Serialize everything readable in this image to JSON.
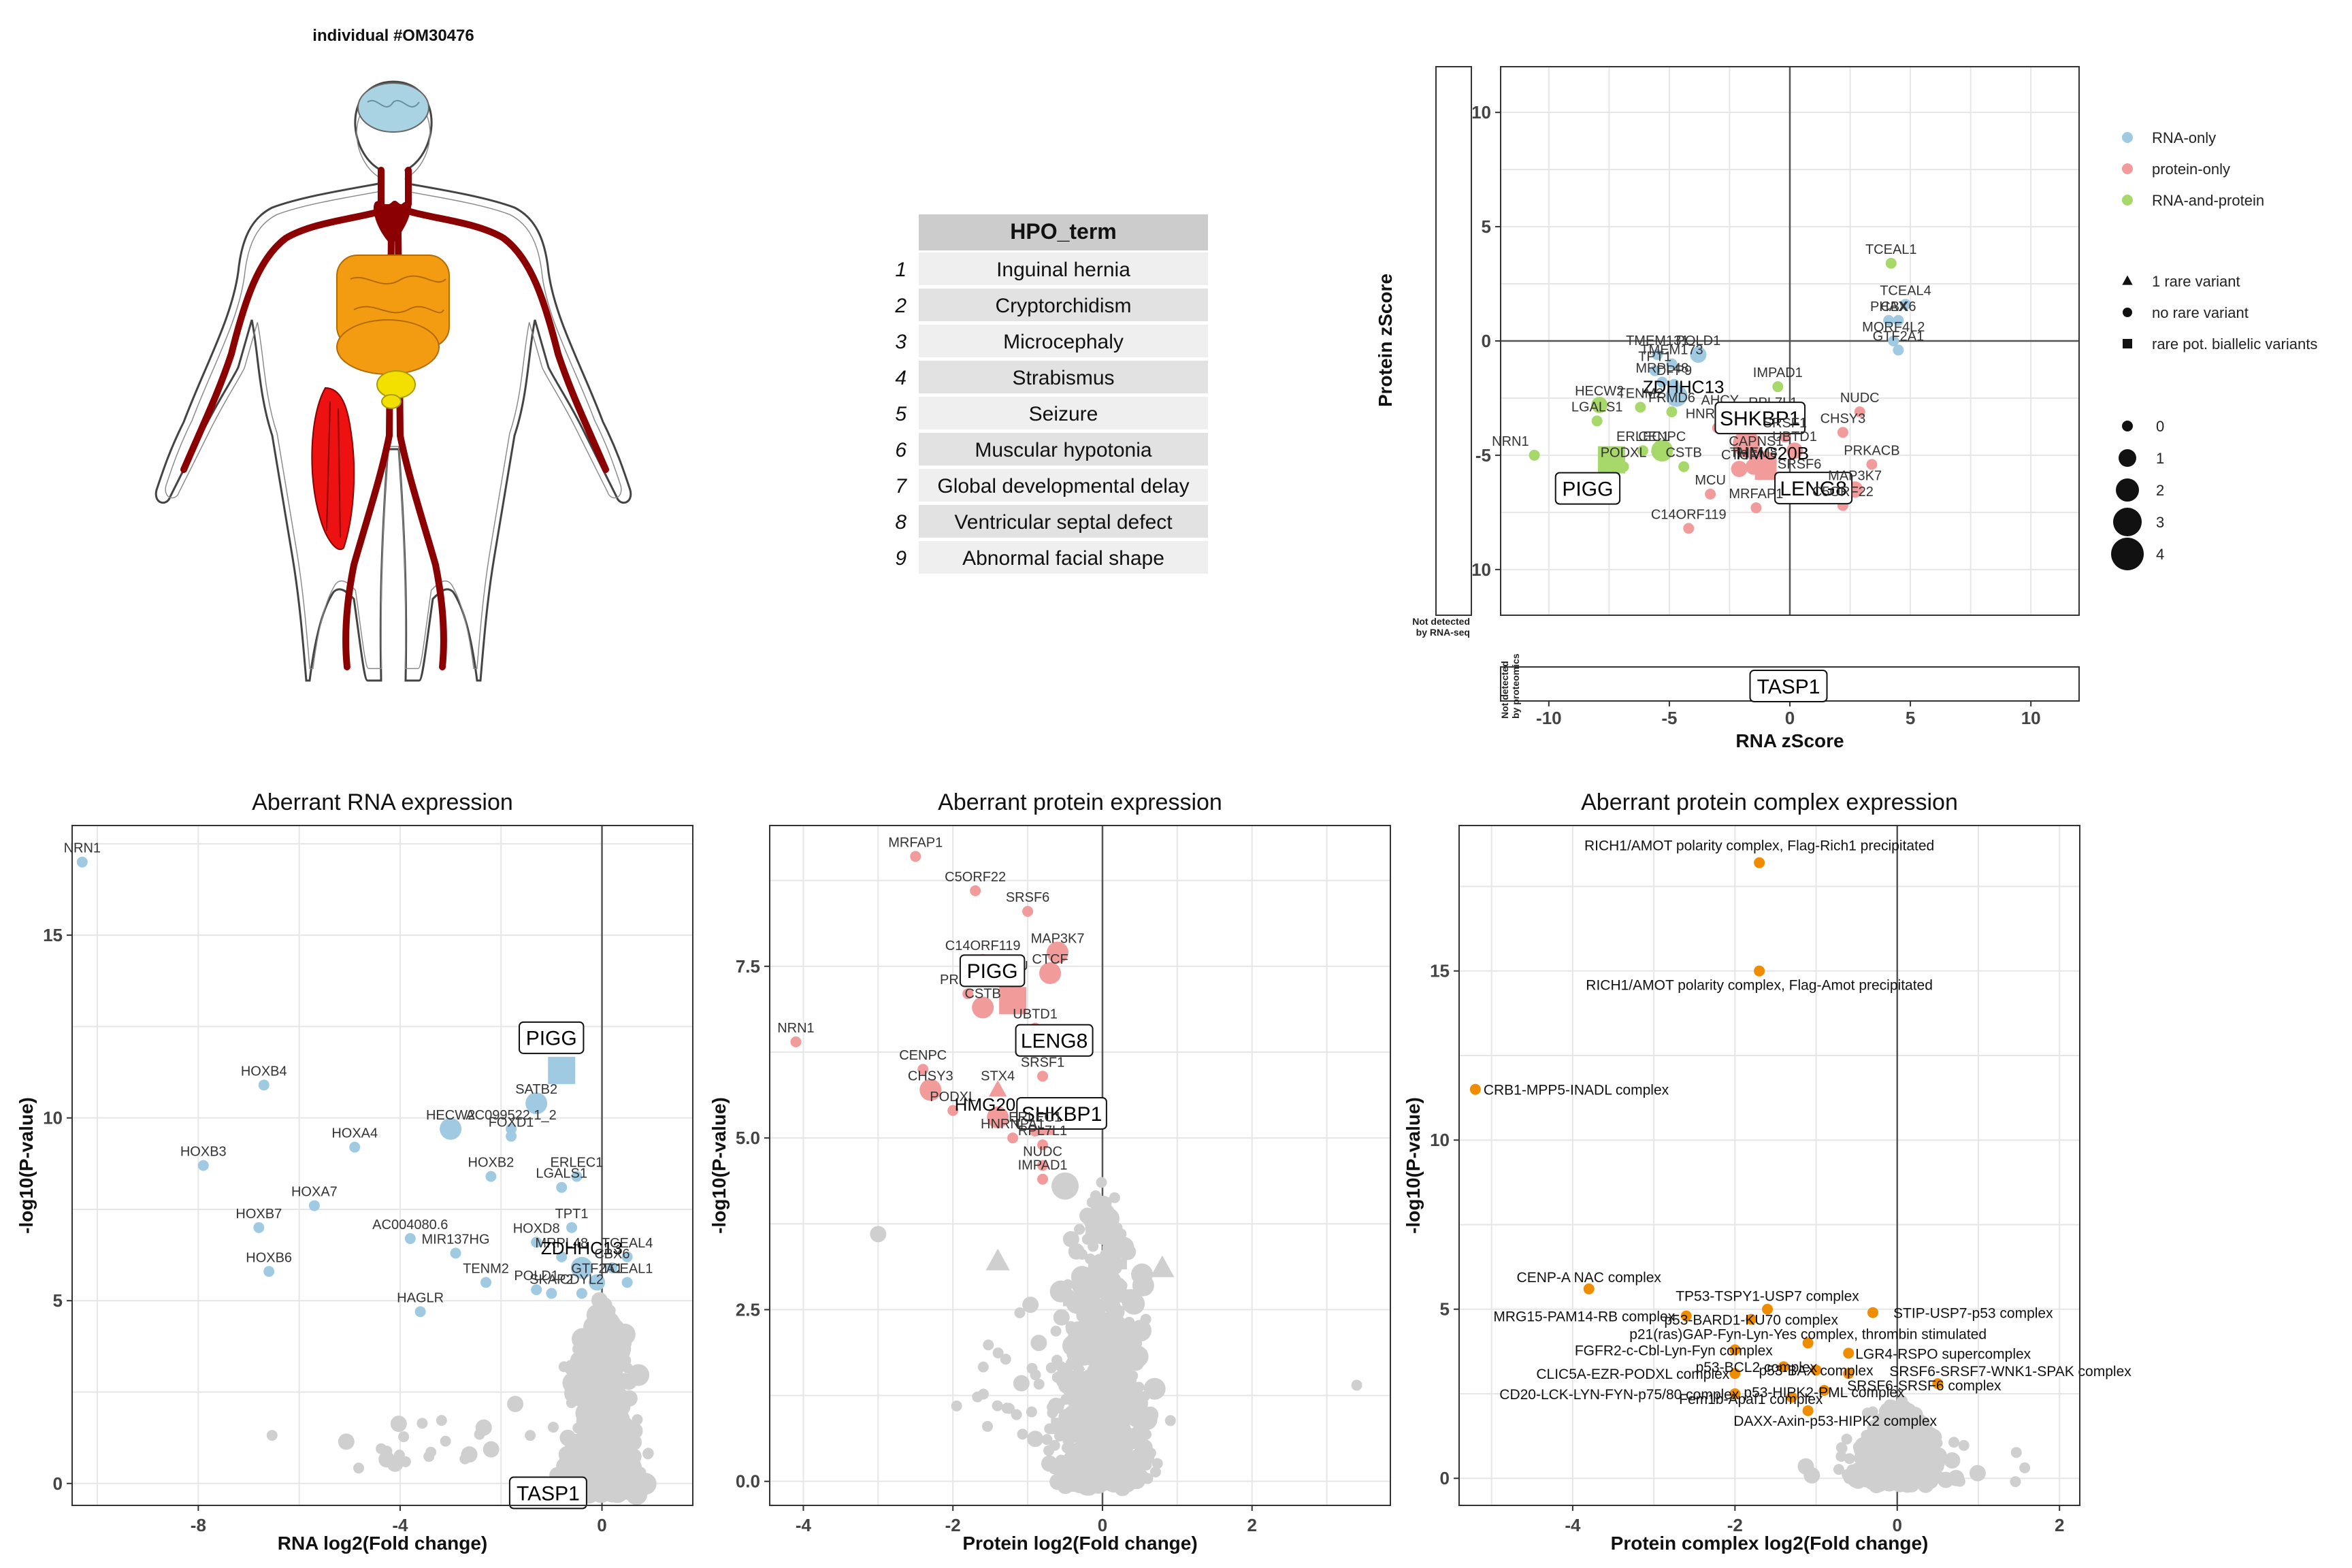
{
  "colors": {
    "rna_only": "#9fcae1",
    "protein_only": "#f29b9b",
    "rna_and_protein": "#a6d96a",
    "background_points": "#cfcfcf",
    "complex_points": "#f08c00",
    "panel_border": "#333333",
    "grid": "#e6e6e6",
    "table_header": "#cccccc",
    "table_row_odd": "#efefef",
    "table_row_even": "#e2e2e2",
    "body_brain": "#a9d3e2",
    "body_heart_vessels": "#8b0000",
    "body_intestine": "#f39c12",
    "body_pancreas": "#f4e000",
    "body_muscle": "#ee1111"
  },
  "body_panel": {
    "title": "individual #OM30476",
    "highlighted_organs": [
      "brain-icon",
      "heart-vessels-icon",
      "intestine-icon",
      "pancreas-icon",
      "muscle-icon"
    ]
  },
  "hpo_table": {
    "header": "HPO_term",
    "rows": [
      {
        "index": "1",
        "term": "Inguinal hernia"
      },
      {
        "index": "2",
        "term": "Cryptorchidism"
      },
      {
        "index": "3",
        "term": "Microcephaly"
      },
      {
        "index": "4",
        "term": "Strabismus"
      },
      {
        "index": "5",
        "term": "Seizure"
      },
      {
        "index": "6",
        "term": "Muscular hypotonia"
      },
      {
        "index": "7",
        "term": "Global developmental delay"
      },
      {
        "index": "8",
        "term": "Ventricular septal defect"
      },
      {
        "index": "9",
        "term": "Abnormal facial shape"
      }
    ]
  },
  "chart_data": [
    {
      "type": "scatter",
      "id": "zscore",
      "title": "",
      "xlabel": "RNA zScore",
      "ylabel": "Protein zScore",
      "xlim": [
        -12,
        12
      ],
      "ylim": [
        -12,
        12
      ],
      "xticks": [
        -10,
        -5,
        0,
        5,
        10
      ],
      "yticks": [
        -10,
        -5,
        0,
        5,
        10
      ],
      "side_label_left": "Not detected by RNA-seq",
      "side_label_bottom": "Not detected by proteomics",
      "legend": {
        "color": [
          {
            "name": "RNA-only",
            "color": "#9fcae1"
          },
          {
            "name": "protein-only",
            "color": "#f29b9b"
          },
          {
            "name": "RNA-and-protein",
            "color": "#a6d96a"
          }
        ],
        "shape": [
          {
            "name": "1 rare variant",
            "shape": "triangle"
          },
          {
            "name": "no rare variant",
            "shape": "circle"
          },
          {
            "name": "rare pot. biallelic variants",
            "shape": "square"
          }
        ],
        "size": [
          "0",
          "1",
          "2",
          "3",
          "4"
        ]
      },
      "points": [
        {
          "label": "TCEAL1",
          "x": 4.2,
          "y": 3.4,
          "cls": "rna_and_protein",
          "size": 0
        },
        {
          "label": "TCEAL4",
          "x": 4.8,
          "y": 1.6,
          "cls": "rna_only",
          "size": 0
        },
        {
          "label": "PHAX",
          "x": 4.1,
          "y": 0.9,
          "cls": "rna_only",
          "size": 0
        },
        {
          "label": "CBX6",
          "x": 4.5,
          "y": 0.9,
          "cls": "rna_only",
          "size": 0
        },
        {
          "label": "MORF4L2",
          "x": 4.3,
          "y": 0.0,
          "cls": "rna_only",
          "size": 0
        },
        {
          "label": "GTF2A1",
          "x": 4.5,
          "y": -0.4,
          "cls": "rna_only",
          "size": 0
        },
        {
          "label": "TMEM131",
          "x": -5.5,
          "y": -0.6,
          "cls": "rna_only",
          "size": 0
        },
        {
          "label": "POLD1",
          "x": -3.8,
          "y": -0.6,
          "cls": "rna_only",
          "size": 1
        },
        {
          "label": "TPT1",
          "x": -5.6,
          "y": -1.3,
          "cls": "rna_only",
          "size": 0
        },
        {
          "label": "TMEM173",
          "x": -4.9,
          "y": -1.0,
          "cls": "rna_only",
          "size": 0
        },
        {
          "label": "MRPL48",
          "x": -5.3,
          "y": -1.8,
          "cls": "rna_only",
          "size": 0
        },
        {
          "label": "ZDHHC13",
          "x": -4.7,
          "y": -2.4,
          "cls": "rna_only",
          "size": 2
        },
        {
          "label": "DPP9",
          "x": -4.8,
          "y": -1.9,
          "cls": "rna_only",
          "size": 0
        },
        {
          "label": "IMPAD1",
          "x": -0.5,
          "y": -2.0,
          "cls": "rna_and_protein",
          "size": 0
        },
        {
          "label": "HECW2",
          "x": -7.9,
          "y": -2.8,
          "cls": "rna_and_protein",
          "size": 1
        },
        {
          "label": "TENM2",
          "x": -6.2,
          "y": -2.9,
          "cls": "rna_and_protein",
          "size": 0
        },
        {
          "label": "AHCY",
          "x": -2.9,
          "y": -3.2,
          "cls": "rna_and_protein",
          "size": 0
        },
        {
          "label": "RPL7L1",
          "x": -0.7,
          "y": -3.3,
          "cls": "protein_only",
          "size": 0
        },
        {
          "label": "NUDC",
          "x": 2.9,
          "y": -3.1,
          "cls": "protein_only",
          "size": 0
        },
        {
          "label": "LGALS1",
          "x": -8.0,
          "y": -3.5,
          "cls": "rna_and_protein",
          "size": 0
        },
        {
          "label": "FRMD6",
          "x": -4.9,
          "y": -3.1,
          "cls": "rna_and_protein",
          "size": 0
        },
        {
          "label": "HNRNPA1",
          "x": -3.0,
          "y": -3.8,
          "cls": "protein_only",
          "size": 0
        },
        {
          "label": "SHKBP1",
          "x": -1.8,
          "y": -4.5,
          "cls": "protein_only",
          "size": 3
        },
        {
          "label": "SRSF1",
          "x": -0.2,
          "y": -4.2,
          "cls": "protein_only",
          "size": 0
        },
        {
          "label": "CHSY3",
          "x": 2.2,
          "y": -4.0,
          "cls": "protein_only",
          "size": 0
        },
        {
          "label": "ERLEC1",
          "x": -6.1,
          "y": -4.8,
          "cls": "rna_and_protein",
          "size": 0
        },
        {
          "label": "CENPC",
          "x": -5.3,
          "y": -4.8,
          "cls": "rna_and_protein",
          "size": 2
        },
        {
          "label": "CAPNS1",
          "x": -1.4,
          "y": -5.0,
          "cls": "protein_only",
          "size": 1
        },
        {
          "label": "HMG20B",
          "x": -1.0,
          "y": -5.3,
          "cls": "protein_only",
          "size": 2
        },
        {
          "label": "UBTD1",
          "x": 0.2,
          "y": -4.8,
          "cls": "protein_only",
          "size": 1
        },
        {
          "label": "NRN1",
          "x": -10.6,
          "y": -5.0,
          "cls": "rna_and_protein",
          "size": 0
        },
        {
          "label": "PIGG",
          "x": -7.4,
          "y": -5.2,
          "cls": "rna_and_protein",
          "size": 3,
          "shape": "square"
        },
        {
          "label": "PODXL",
          "x": -6.9,
          "y": -5.5,
          "cls": "rna_and_protein",
          "size": 0
        },
        {
          "label": "CSTB",
          "x": -4.4,
          "y": -5.5,
          "cls": "rna_and_protein",
          "size": 0
        },
        {
          "label": "CTCF",
          "x": -2.1,
          "y": -5.6,
          "cls": "protein_only",
          "size": 1
        },
        {
          "label": "SRSF6",
          "x": 0.4,
          "y": -6.0,
          "cls": "protein_only",
          "size": 0
        },
        {
          "label": "LENG8",
          "x": -1.0,
          "y": -5.6,
          "cls": "protein_only",
          "size": 2,
          "shape": "square"
        },
        {
          "label": "TMEM8",
          "x": -1.5,
          "y": -5.5,
          "cls": "protein_only",
          "size": 1
        },
        {
          "label": "PRKACB",
          "x": 3.4,
          "y": -5.4,
          "cls": "protein_only",
          "size": 0
        },
        {
          "label": "MAP3K7",
          "x": 2.7,
          "y": -6.5,
          "cls": "protein_only",
          "size": 1
        },
        {
          "label": "MCU",
          "x": -3.3,
          "y": -6.7,
          "cls": "protein_only",
          "size": 0
        },
        {
          "label": "MRFAP1",
          "x": -1.4,
          "y": -7.3,
          "cls": "protein_only",
          "size": 0
        },
        {
          "label": "C5ORF22",
          "x": 2.2,
          "y": -7.2,
          "cls": "protein_only",
          "size": 0
        },
        {
          "label": "C14ORF119",
          "x": -4.2,
          "y": -8.2,
          "cls": "protein_only",
          "size": 0
        }
      ],
      "outlier_labels": [
        "TASP1"
      ]
    },
    {
      "type": "scatter",
      "id": "rna_volcano",
      "title": "Aberrant RNA expression",
      "xlabel": "RNA log2(Fold change)",
      "ylabel": "-log10(P-value)",
      "xlim": [
        -10.5,
        1.8
      ],
      "ylim": [
        -0.6,
        18
      ],
      "xticks": [
        -8,
        -4,
        0
      ],
      "yticks": [
        0,
        5,
        10,
        15
      ],
      "highlight_points": [
        {
          "label": "NRN1",
          "x": -10.3,
          "y": 17.0,
          "size": 0
        },
        {
          "label": "HOXB4",
          "x": -6.7,
          "y": 10.9,
          "size": 0
        },
        {
          "label": "PIGG",
          "x": -0.8,
          "y": 11.3,
          "size": 3,
          "shape": "square",
          "boxed": true
        },
        {
          "label": "SATB2",
          "x": -1.3,
          "y": 10.4,
          "size": 2
        },
        {
          "label": "HECW2",
          "x": -3.0,
          "y": 9.7,
          "size": 2
        },
        {
          "label": "AC099522.1_2",
          "x": -1.8,
          "y": 9.7,
          "size": 0
        },
        {
          "label": "HOXB3",
          "x": -7.9,
          "y": 8.7,
          "size": 0
        },
        {
          "label": "HOXA4",
          "x": -4.9,
          "y": 9.2,
          "size": 0
        },
        {
          "label": "FOXD1",
          "x": -1.8,
          "y": 9.5,
          "size": 0
        },
        {
          "label": "HOXB2",
          "x": -2.2,
          "y": 8.4,
          "size": 0
        },
        {
          "label": "ERLEC1",
          "x": -0.5,
          "y": 8.4,
          "size": 0
        },
        {
          "label": "HOXA7",
          "x": -5.7,
          "y": 7.6,
          "size": 0
        },
        {
          "label": "LGALS1",
          "x": -0.8,
          "y": 8.1,
          "size": 0
        },
        {
          "label": "HOXB7",
          "x": -6.8,
          "y": 7.0,
          "size": 0
        },
        {
          "label": "AC004080.6",
          "x": -3.8,
          "y": 6.7,
          "size": 0
        },
        {
          "label": "HOXD8",
          "x": -1.3,
          "y": 6.6,
          "size": 0
        },
        {
          "label": "TPT1",
          "x": -0.6,
          "y": 7.0,
          "size": 0
        },
        {
          "label": "MIR137HG",
          "x": -2.9,
          "y": 6.3,
          "size": 0
        },
        {
          "label": "MRPL48",
          "x": -0.8,
          "y": 6.2,
          "size": 0
        },
        {
          "label": "TCEAL4",
          "x": 0.5,
          "y": 6.2,
          "size": 0
        },
        {
          "label": "HOXB6",
          "x": -6.6,
          "y": 5.8,
          "size": 0
        },
        {
          "label": "ZDHHC13",
          "x": -0.4,
          "y": 5.9,
          "size": 2
        },
        {
          "label": "CBX6",
          "x": 0.2,
          "y": 5.9,
          "size": 0
        },
        {
          "label": "GTF2A1",
          "x": -0.1,
          "y": 5.5,
          "size": 1
        },
        {
          "label": "POLD1",
          "x": -1.3,
          "y": 5.3,
          "size": 0
        },
        {
          "label": "TCEAL1",
          "x": 0.5,
          "y": 5.5,
          "size": 0
        },
        {
          "label": "TENM2",
          "x": -2.3,
          "y": 5.5,
          "size": 0
        },
        {
          "label": "SKAP2",
          "x": -1.0,
          "y": 5.2,
          "size": 0
        },
        {
          "label": "CDYL2",
          "x": -0.4,
          "y": 5.2,
          "size": 0
        },
        {
          "label": "HAGLR",
          "x": -3.6,
          "y": 4.7,
          "size": 0
        }
      ],
      "boxed_labels": [
        {
          "label": "TASP1",
          "x": -1.0,
          "y": -0.2
        }
      ]
    },
    {
      "type": "scatter",
      "id": "protein_volcano",
      "title": "Aberrant protein expression",
      "xlabel": "Protein log2(Fold change)",
      "ylabel": "-log10(P-value)",
      "xlim": [
        -4.45,
        3.85
      ],
      "ylim": [
        -0.35,
        9.55
      ],
      "xticks": [
        -4,
        -2,
        0,
        2
      ],
      "yticks": [
        0.0,
        2.5,
        5.0,
        7.5
      ],
      "yticklabels": [
        "0.0",
        "2.5",
        "5.0",
        "7.5"
      ],
      "highlight_points": [
        {
          "label": "MRFAP1",
          "x": -2.5,
          "y": 9.1,
          "size": 0
        },
        {
          "label": "C5ORF22",
          "x": -1.7,
          "y": 8.6,
          "size": 0
        },
        {
          "label": "SRSF6",
          "x": -1.0,
          "y": 8.3,
          "size": 0
        },
        {
          "label": "MAP3K7",
          "x": -0.6,
          "y": 7.7,
          "size": 2
        },
        {
          "label": "C14ORF119",
          "x": -1.6,
          "y": 7.6,
          "size": 0
        },
        {
          "label": "MCU",
          "x": -1.2,
          "y": 7.3,
          "size": 1
        },
        {
          "label": "CTCF",
          "x": -0.7,
          "y": 7.4,
          "size": 2
        },
        {
          "label": "PRKACB",
          "x": -1.8,
          "y": 7.1,
          "size": 0
        },
        {
          "label": "PIGG",
          "x": -1.2,
          "y": 7.0,
          "size": 3,
          "shape": "square",
          "boxed": true
        },
        {
          "label": "CSTB",
          "x": -1.6,
          "y": 6.9,
          "size": 2
        },
        {
          "label": "UBTD1",
          "x": -0.9,
          "y": 6.6,
          "size": 0
        },
        {
          "label": "NRN1",
          "x": -4.1,
          "y": 6.4,
          "size": 0
        },
        {
          "label": "CAPNS1",
          "x": -0.8,
          "y": 6.3,
          "size": 1
        },
        {
          "label": "LENG8",
          "x": -0.9,
          "y": 6.5,
          "size": 1,
          "boxed": true
        },
        {
          "label": "CENPC",
          "x": -2.4,
          "y": 6.0,
          "size": 0
        },
        {
          "label": "SRSF1",
          "x": -0.8,
          "y": 5.9,
          "size": 0
        },
        {
          "label": "CHSY3",
          "x": -2.3,
          "y": 5.7,
          "size": 2
        },
        {
          "label": "STX4",
          "x": -1.4,
          "y": 5.7,
          "size": 1,
          "shape": "triangle"
        },
        {
          "label": "PODXL",
          "x": -2.0,
          "y": 5.4,
          "size": 0
        },
        {
          "label": "HMG20B",
          "x": -1.4,
          "y": 5.3,
          "size": 2
        },
        {
          "label": "SHKBP1",
          "x": -0.8,
          "y": 5.2,
          "size": 2,
          "shape": "square",
          "boxed": true
        },
        {
          "label": "ERLEC1",
          "x": -0.9,
          "y": 5.1,
          "size": 0
        },
        {
          "label": "HNRNPA1",
          "x": -1.2,
          "y": 5.0,
          "size": 0
        },
        {
          "label": "RPL7L1",
          "x": -0.8,
          "y": 4.9,
          "size": 0
        },
        {
          "label": "NUDC",
          "x": -0.8,
          "y": 4.6,
          "size": 0
        },
        {
          "label": "IMPAD1",
          "x": -0.8,
          "y": 4.4,
          "size": 0
        }
      ]
    },
    {
      "type": "scatter",
      "id": "complex_volcano",
      "title": "Aberrant protein complex expression",
      "xlabel": "Protein complex log2(Fold change)",
      "ylabel": "-log10(P-value)",
      "xlim": [
        -5.4,
        2.25
      ],
      "ylim": [
        -0.8,
        19.3
      ],
      "xticks": [
        -4,
        -2,
        0,
        2
      ],
      "yticks": [
        0,
        5,
        10,
        15
      ],
      "highlight_points": [
        {
          "label": "RICH1/AMOT polarity complex, Flag-Rich1 precipitated",
          "x": -1.7,
          "y": 18.2
        },
        {
          "label": "RICH1/AMOT polarity complex, Flag-Amot precipitated",
          "x": -1.7,
          "y": 15.0
        },
        {
          "label": "CRB1-MPP5-INADL complex",
          "x": -5.2,
          "y": 11.5
        },
        {
          "label": "CENP-A NAC complex",
          "x": -3.8,
          "y": 5.6
        },
        {
          "label": "TP53-TSPY1-USP7 complex",
          "x": -1.6,
          "y": 5.0
        },
        {
          "label": "MRG15-PAM14-RB complex",
          "x": -2.6,
          "y": 4.8
        },
        {
          "label": "p53-BARD1-KU70 complex",
          "x": -1.8,
          "y": 4.7
        },
        {
          "label": "STIP-USP7-p53 complex",
          "x": -0.3,
          "y": 4.9
        },
        {
          "label": "p21(ras)GAP-Fyn-Lyn-Yes complex, thrombin stimulated",
          "x": -1.1,
          "y": 4.0
        },
        {
          "label": "FGFR2-c-Cbl-Lyn-Fyn complex",
          "x": -2.0,
          "y": 3.8
        },
        {
          "label": "LGR4-RSPO supercomplex",
          "x": -0.6,
          "y": 3.7
        },
        {
          "label": "CLIC5A-EZR-PODXL complex",
          "x": -2.0,
          "y": 3.1
        },
        {
          "label": "p53-BCL2 complex",
          "x": -1.4,
          "y": 3.3
        },
        {
          "label": "p53-BAX complex",
          "x": -1.0,
          "y": 3.2
        },
        {
          "label": "SRSF6-SRSF7-WNK1-SPAK complex",
          "x": -0.6,
          "y": 3.1
        },
        {
          "label": "CD20-LCK-LYN-FYN-p75/80 complex",
          "x": -2.0,
          "y": 2.5
        },
        {
          "label": "Fem1b-Apaf1 complex",
          "x": -1.3,
          "y": 2.4
        },
        {
          "label": "p53-HIPK2-PML complex",
          "x": -0.9,
          "y": 2.6
        },
        {
          "label": "SRSF6-SRSF6 complex",
          "x": 0.5,
          "y": 2.8
        },
        {
          "label": "DAXX-Axin-p53-HIPK2 complex",
          "x": -1.1,
          "y": 2.0
        }
      ]
    }
  ]
}
